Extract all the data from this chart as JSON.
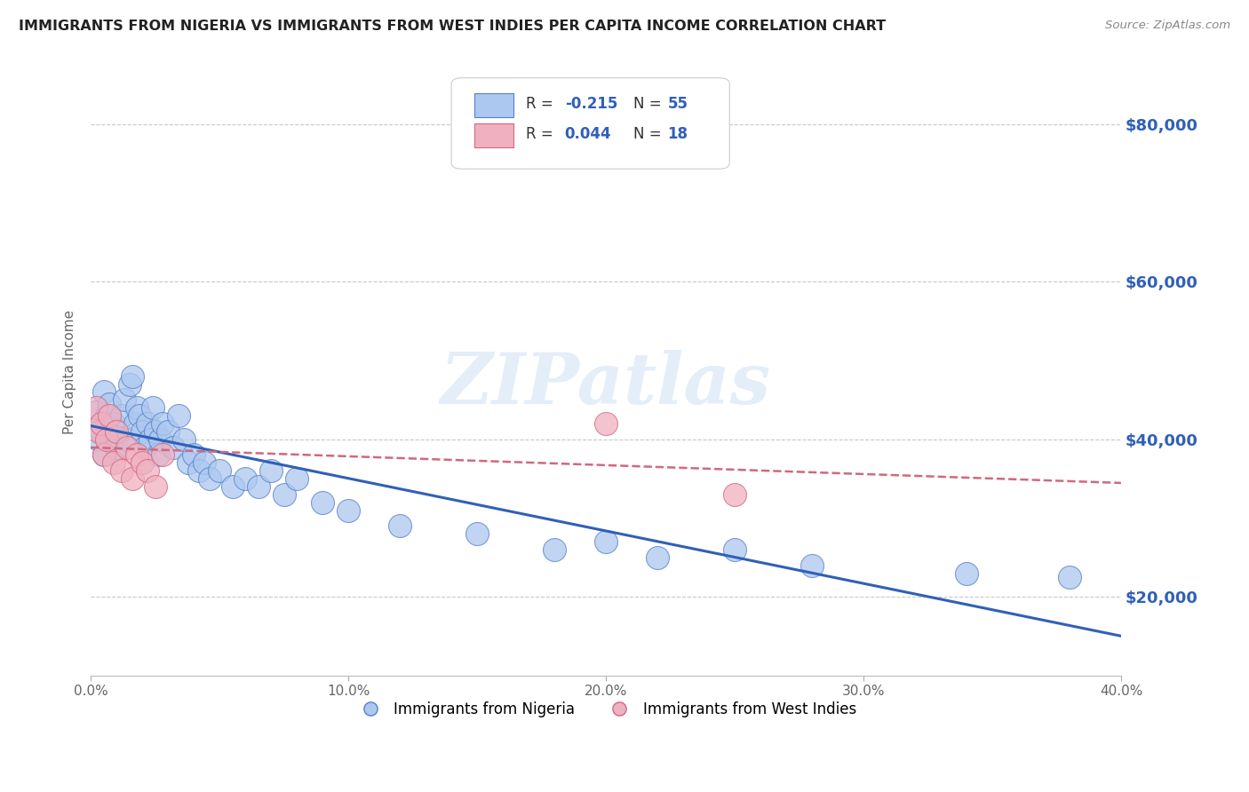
{
  "title": "IMMIGRANTS FROM NIGERIA VS IMMIGRANTS FROM WEST INDIES PER CAPITA INCOME CORRELATION CHART",
  "source": "Source: ZipAtlas.com",
  "ylabel": "Per Capita Income",
  "xlim": [
    0.0,
    0.4
  ],
  "ylim": [
    10000,
    87000
  ],
  "yticks": [
    20000,
    40000,
    60000,
    80000
  ],
  "ytick_labels": [
    "$20,000",
    "$40,000",
    "$60,000",
    "$80,000"
  ],
  "xticks": [
    0.0,
    0.1,
    0.2,
    0.3,
    0.4
  ],
  "xtick_labels": [
    "0.0%",
    "10.0%",
    "20.0%",
    "30.0%",
    "40.0%"
  ],
  "r_nigeria": "-0.215",
  "n_nigeria": "55",
  "r_west_indies": "0.044",
  "n_west_indies": "18",
  "color_nigeria_fill": "#adc8f0",
  "color_nigeria_edge": "#5580c8",
  "color_wi_fill": "#f0b0c0",
  "color_wi_edge": "#d06880",
  "line_color_nigeria": "#3060b8",
  "line_color_wi": "#d06880",
  "watermark": "ZIPatlas",
  "grid_color": "#c8c8c8",
  "nigeria_x": [
    0.002,
    0.003,
    0.004,
    0.005,
    0.005,
    0.006,
    0.007,
    0.008,
    0.009,
    0.01,
    0.011,
    0.012,
    0.013,
    0.014,
    0.015,
    0.016,
    0.017,
    0.018,
    0.019,
    0.02,
    0.021,
    0.022,
    0.023,
    0.024,
    0.025,
    0.026,
    0.027,
    0.028,
    0.03,
    0.032,
    0.034,
    0.036,
    0.038,
    0.04,
    0.042,
    0.044,
    0.046,
    0.05,
    0.055,
    0.06,
    0.065,
    0.07,
    0.075,
    0.08,
    0.09,
    0.1,
    0.12,
    0.15,
    0.18,
    0.2,
    0.22,
    0.25,
    0.28,
    0.34,
    0.38
  ],
  "nigeria_y": [
    43500,
    40000,
    41000,
    46000,
    38000,
    43000,
    44500,
    40000,
    42000,
    39000,
    41000,
    43000,
    45000,
    40000,
    47000,
    48000,
    42000,
    44000,
    43000,
    41000,
    39000,
    42000,
    40000,
    44000,
    41000,
    38000,
    40000,
    42000,
    41000,
    39000,
    43000,
    40000,
    37000,
    38000,
    36000,
    37000,
    35000,
    36000,
    34000,
    35000,
    34000,
    36000,
    33000,
    35000,
    32000,
    31000,
    29000,
    28000,
    26000,
    27000,
    25000,
    26000,
    24000,
    23000,
    22500
  ],
  "west_indies_x": [
    0.002,
    0.003,
    0.004,
    0.005,
    0.006,
    0.007,
    0.009,
    0.01,
    0.012,
    0.014,
    0.016,
    0.018,
    0.02,
    0.022,
    0.025,
    0.028,
    0.2,
    0.25
  ],
  "west_indies_y": [
    44000,
    41000,
    42000,
    38000,
    40000,
    43000,
    37000,
    41000,
    36000,
    39000,
    35000,
    38000,
    37000,
    36000,
    34000,
    38000,
    42000,
    33000
  ]
}
